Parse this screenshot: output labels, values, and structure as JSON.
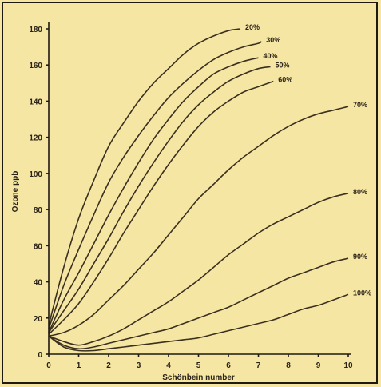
{
  "colors": {
    "background": "#f6e6a3",
    "ink": "#3a3020"
  },
  "chart_data": {
    "type": "line",
    "xlabel": "Schönbein number",
    "ylabel": "Ozone ppb",
    "xlim": [
      0,
      10
    ],
    "ylim": [
      0,
      180
    ],
    "x_ticks": [
      0,
      1,
      2,
      3,
      4,
      5,
      6,
      7,
      8,
      9,
      10
    ],
    "y_ticks": [
      0,
      20,
      40,
      60,
      80,
      100,
      120,
      140,
      160,
      180
    ],
    "grid": false,
    "series": [
      {
        "name": "20%",
        "points": [
          [
            0,
            16
          ],
          [
            0.5,
            48
          ],
          [
            1,
            75
          ],
          [
            1.5,
            96
          ],
          [
            2,
            115
          ],
          [
            2.5,
            128
          ],
          [
            3,
            140
          ],
          [
            3.5,
            150
          ],
          [
            4,
            158
          ],
          [
            4.5,
            166
          ],
          [
            5,
            172
          ],
          [
            5.5,
            176
          ],
          [
            6,
            179
          ],
          [
            6.4,
            180
          ]
        ]
      },
      {
        "name": "30%",
        "points": [
          [
            0,
            14
          ],
          [
            0.5,
            38
          ],
          [
            1,
            58
          ],
          [
            1.5,
            77
          ],
          [
            2,
            95
          ],
          [
            2.5,
            109
          ],
          [
            3,
            121
          ],
          [
            3.5,
            132
          ],
          [
            4,
            142
          ],
          [
            4.5,
            150
          ],
          [
            5,
            157
          ],
          [
            5.5,
            163
          ],
          [
            6,
            167
          ],
          [
            6.5,
            170
          ],
          [
            7,
            172
          ],
          [
            7.1,
            173
          ]
        ]
      },
      {
        "name": "40%",
        "points": [
          [
            0,
            12
          ],
          [
            0.5,
            30
          ],
          [
            1,
            45
          ],
          [
            1.5,
            61
          ],
          [
            2,
            77
          ],
          [
            2.5,
            92
          ],
          [
            3,
            106
          ],
          [
            3.5,
            119
          ],
          [
            4,
            130
          ],
          [
            4.5,
            140
          ],
          [
            5,
            148
          ],
          [
            5.5,
            155
          ],
          [
            6,
            159
          ],
          [
            6.5,
            162
          ],
          [
            7,
            164
          ]
        ]
      },
      {
        "name": "50%",
        "points": [
          [
            0,
            12
          ],
          [
            0.5,
            24
          ],
          [
            1,
            36
          ],
          [
            1.5,
            50
          ],
          [
            2,
            64
          ],
          [
            2.5,
            79
          ],
          [
            3,
            93
          ],
          [
            3.5,
            106
          ],
          [
            4,
            118
          ],
          [
            4.5,
            129
          ],
          [
            5,
            138
          ],
          [
            5.5,
            145
          ],
          [
            6,
            151
          ],
          [
            6.5,
            155
          ],
          [
            7,
            158
          ],
          [
            7.4,
            159
          ]
        ]
      },
      {
        "name": "60%",
        "points": [
          [
            0,
            11
          ],
          [
            0.5,
            19
          ],
          [
            1,
            28
          ],
          [
            1.5,
            40
          ],
          [
            2,
            53
          ],
          [
            2.5,
            67
          ],
          [
            3,
            80
          ],
          [
            3.5,
            93
          ],
          [
            4,
            105
          ],
          [
            4.5,
            116
          ],
          [
            5,
            126
          ],
          [
            5.5,
            134
          ],
          [
            6,
            140
          ],
          [
            6.5,
            145
          ],
          [
            7,
            148
          ],
          [
            7.5,
            151
          ]
        ]
      },
      {
        "name": "70%",
        "points": [
          [
            0,
            10
          ],
          [
            0.5,
            12
          ],
          [
            1,
            16
          ],
          [
            1.5,
            22
          ],
          [
            2,
            30
          ],
          [
            2.5,
            38
          ],
          [
            3,
            47
          ],
          [
            3.5,
            56
          ],
          [
            4,
            66
          ],
          [
            4.5,
            76
          ],
          [
            5,
            86
          ],
          [
            5.5,
            94
          ],
          [
            6,
            102
          ],
          [
            6.5,
            109
          ],
          [
            7,
            115
          ],
          [
            7.5,
            121
          ],
          [
            8,
            126
          ],
          [
            8.5,
            130
          ],
          [
            9,
            133
          ],
          [
            9.5,
            135
          ],
          [
            10,
            137
          ]
        ]
      },
      {
        "name": "80%",
        "points": [
          [
            0,
            10
          ],
          [
            0.5,
            7
          ],
          [
            1,
            5
          ],
          [
            1.5,
            7
          ],
          [
            2,
            10
          ],
          [
            2.5,
            14
          ],
          [
            3,
            19
          ],
          [
            3.5,
            24
          ],
          [
            4,
            29
          ],
          [
            4.5,
            35
          ],
          [
            5,
            41
          ],
          [
            5.5,
            48
          ],
          [
            6,
            55
          ],
          [
            6.5,
            61
          ],
          [
            7,
            67
          ],
          [
            7.5,
            72
          ],
          [
            8,
            76
          ],
          [
            8.5,
            80
          ],
          [
            9,
            84
          ],
          [
            9.5,
            87
          ],
          [
            10,
            89
          ]
        ]
      },
      {
        "name": "90%",
        "points": [
          [
            0,
            10
          ],
          [
            0.5,
            5
          ],
          [
            1,
            3
          ],
          [
            1.5,
            4
          ],
          [
            2,
            6
          ],
          [
            2.5,
            8
          ],
          [
            3,
            10
          ],
          [
            3.5,
            12
          ],
          [
            4,
            14
          ],
          [
            4.5,
            17
          ],
          [
            5,
            20
          ],
          [
            5.5,
            23
          ],
          [
            6,
            26
          ],
          [
            6.5,
            30
          ],
          [
            7,
            34
          ],
          [
            7.5,
            38
          ],
          [
            8,
            42
          ],
          [
            8.5,
            45
          ],
          [
            9,
            48
          ],
          [
            9.5,
            51
          ],
          [
            10,
            53
          ]
        ]
      },
      {
        "name": "100%",
        "points": [
          [
            0,
            10
          ],
          [
            0.5,
            4
          ],
          [
            1,
            2
          ],
          [
            1.5,
            2
          ],
          [
            2,
            3
          ],
          [
            2.5,
            4
          ],
          [
            3,
            5
          ],
          [
            3.5,
            6
          ],
          [
            4,
            7
          ],
          [
            4.5,
            8
          ],
          [
            5,
            9
          ],
          [
            5.5,
            11
          ],
          [
            6,
            13
          ],
          [
            6.5,
            15
          ],
          [
            7,
            17
          ],
          [
            7.5,
            19
          ],
          [
            8,
            22
          ],
          [
            8.5,
            25
          ],
          [
            9,
            27
          ],
          [
            9.5,
            30
          ],
          [
            10,
            33
          ]
        ]
      }
    ]
  }
}
